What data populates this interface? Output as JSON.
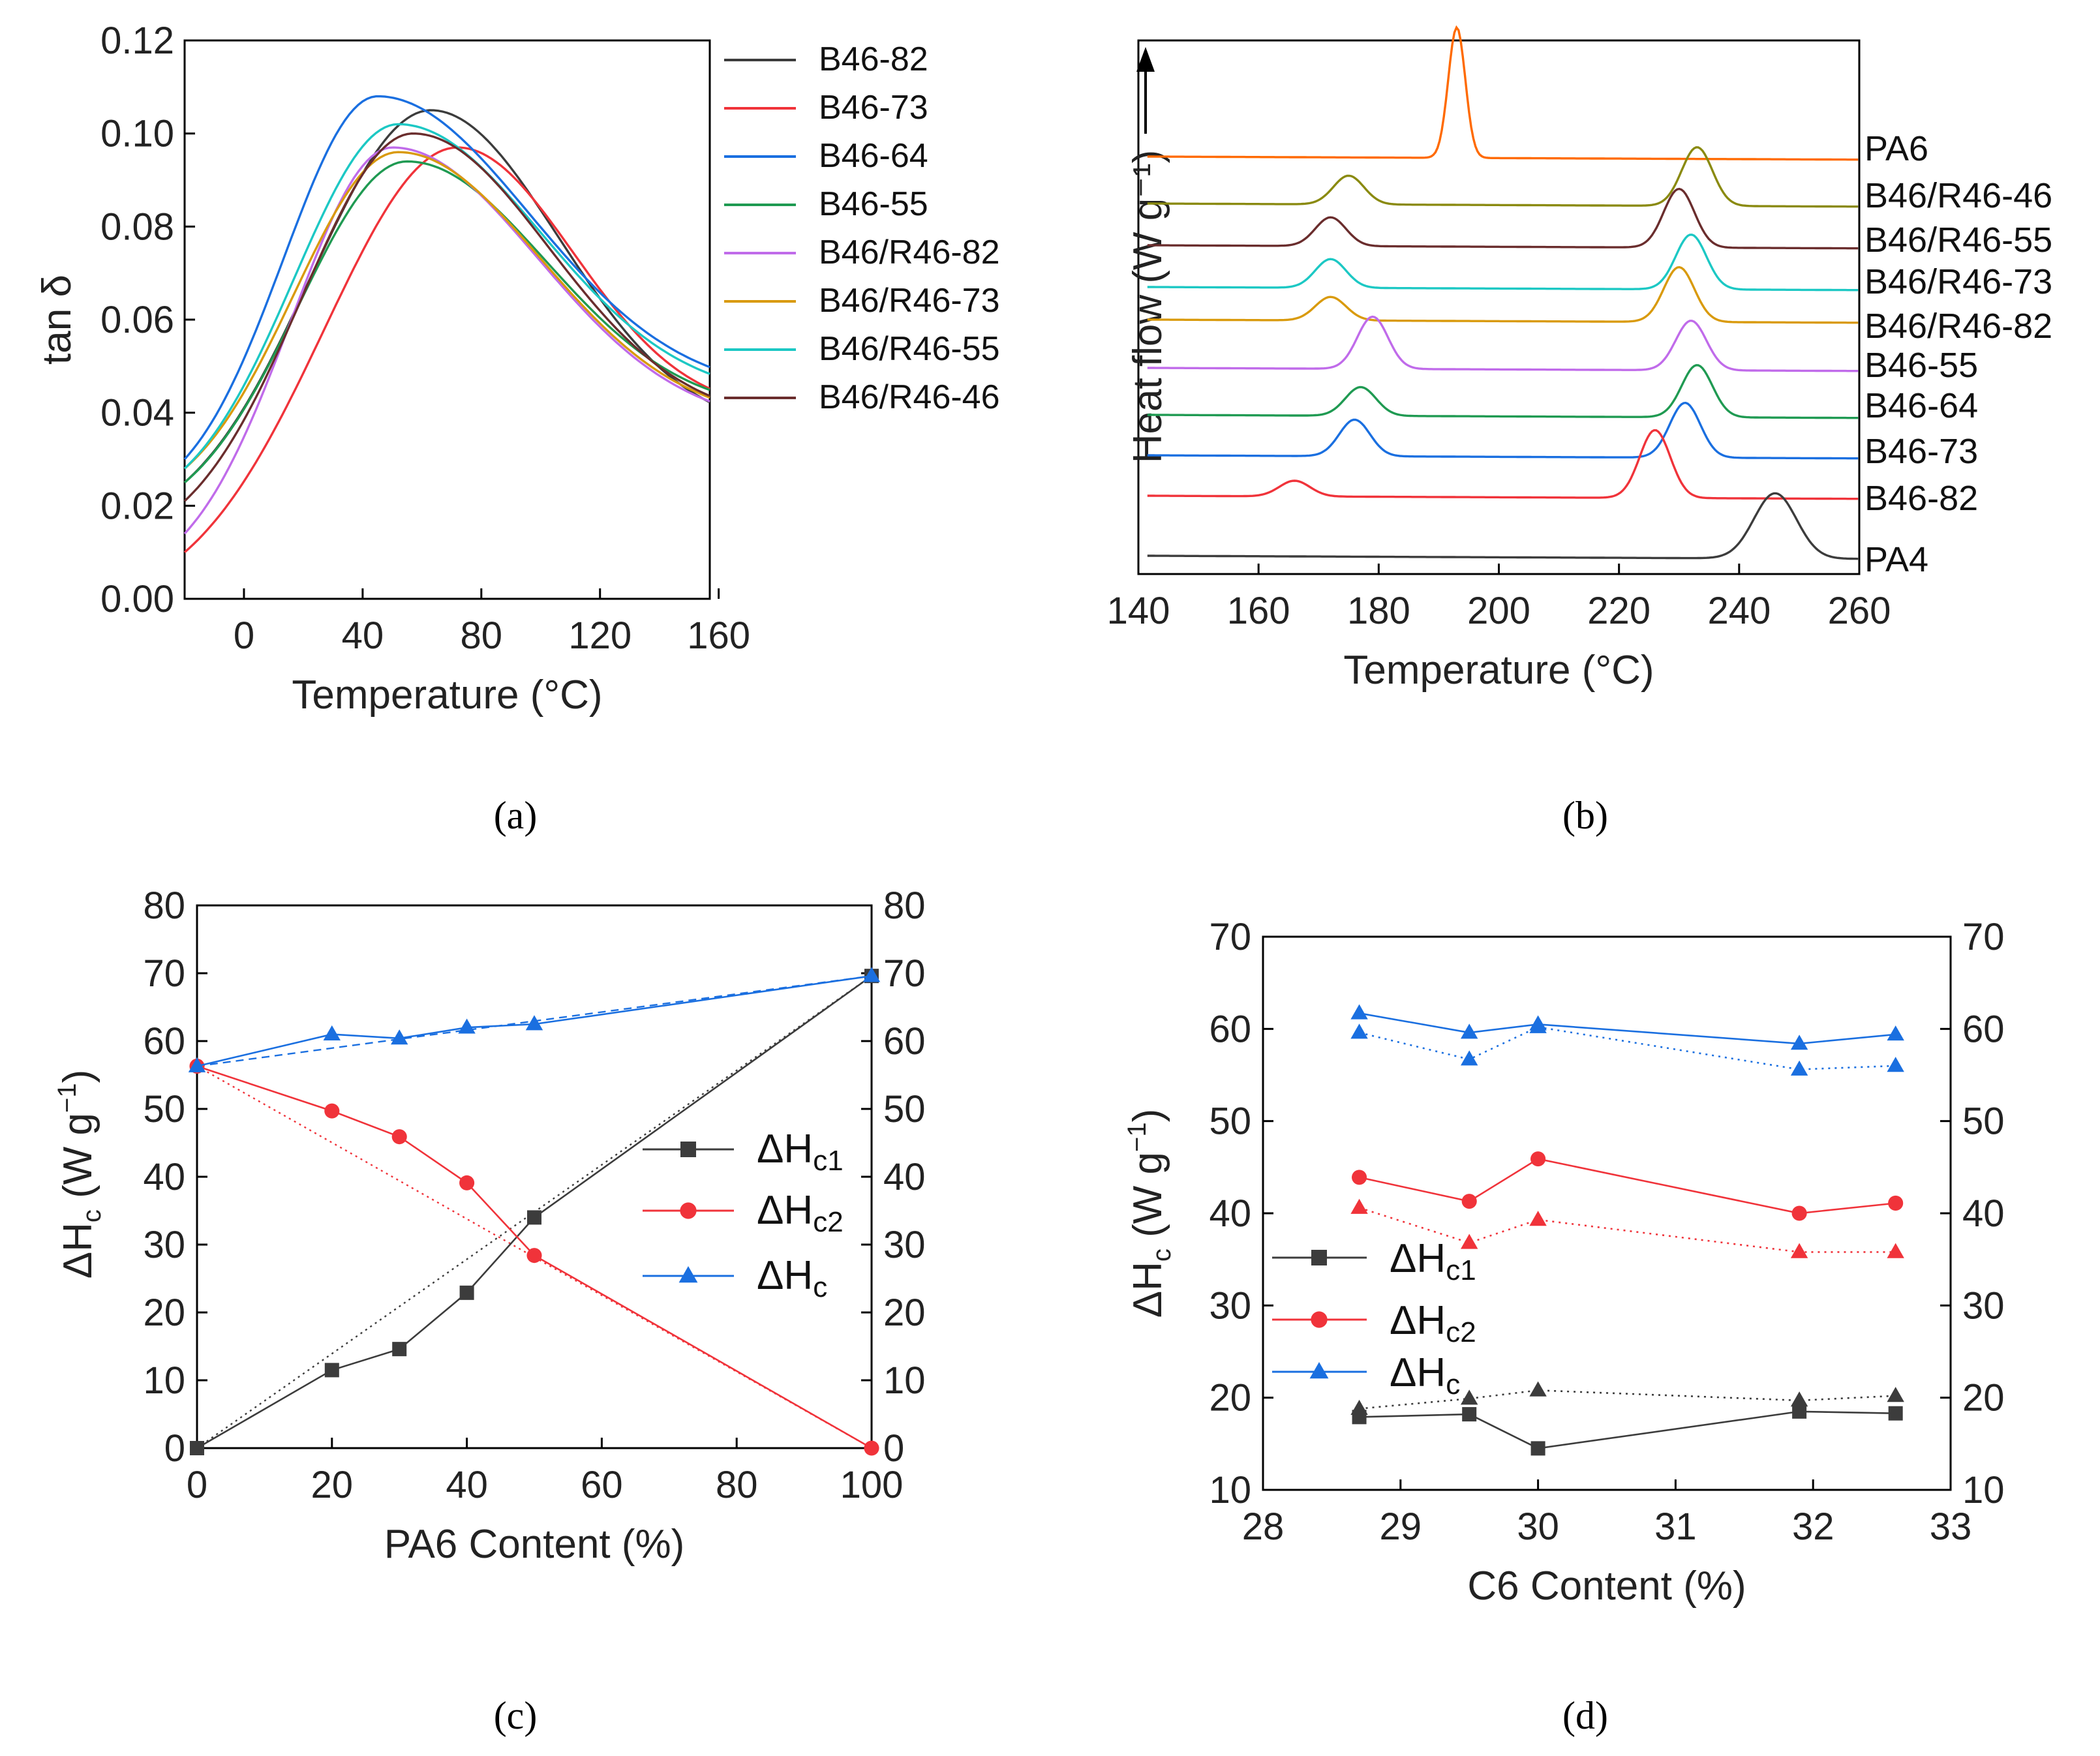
{
  "panels": {
    "a": {
      "label": "(a)"
    },
    "b": {
      "label": "(b)"
    },
    "c": {
      "label": "(c)"
    },
    "d": {
      "label": "(d)"
    }
  },
  "colors": {
    "black": "#3c3c3c",
    "red": "#f0333a",
    "blue": "#1a6fe0",
    "green": "#1f9a52",
    "violet": "#c06bea",
    "gold": "#d99a0c",
    "cyan": "#1cc8c4",
    "brown": "#6a2d2d",
    "orange": "#ff6a00",
    "olive": "#8a8a10"
  },
  "chart_data": [
    {
      "id": "a",
      "type": "line",
      "xlabel": "Temperature (°C)",
      "ylabel": "tan δ",
      "xlim": [
        -20,
        157
      ],
      "ylim": [
        0,
        0.12
      ],
      "xticks": [
        0,
        40,
        80,
        120,
        160
      ],
      "yticks": [
        "0.00",
        "0.02",
        "0.04",
        "0.06",
        "0.08",
        "0.10",
        "0.12"
      ],
      "legend": "top-right",
      "series": [
        {
          "name": "B46-82",
          "color": "#3c3c3c",
          "peak_x": 63,
          "peak_y": 0.105,
          "y_start": 0.025,
          "y_end": 0.036
        },
        {
          "name": "B46-73",
          "color": "#f0333a",
          "peak_x": 72,
          "peak_y": 0.097,
          "y_start": 0.01,
          "y_end": 0.04
        },
        {
          "name": "B46-64",
          "color": "#1a6fe0",
          "peak_x": 45,
          "peak_y": 0.108,
          "y_start": 0.03,
          "y_end": 0.044
        },
        {
          "name": "B46-55",
          "color": "#1f9a52",
          "peak_x": 55,
          "peak_y": 0.094,
          "y_start": 0.025,
          "y_end": 0.04
        },
        {
          "name": "B46/R46-82",
          "color": "#c06bea",
          "peak_x": 50,
          "peak_y": 0.097,
          "y_start": 0.014,
          "y_end": 0.037
        },
        {
          "name": "B46/R46-73",
          "color": "#d99a0c",
          "peak_x": 52,
          "peak_y": 0.096,
          "y_start": 0.028,
          "y_end": 0.038
        },
        {
          "name": "B46/R46-55",
          "color": "#1cc8c4",
          "peak_x": 52,
          "peak_y": 0.102,
          "y_start": 0.028,
          "y_end": 0.043
        },
        {
          "name": "B46/R46-46",
          "color": "#6a2d2d",
          "peak_x": 57,
          "peak_y": 0.1,
          "y_start": 0.021,
          "y_end": 0.038
        }
      ]
    },
    {
      "id": "b",
      "type": "line",
      "xlabel": "Temperature (°C)",
      "ylabel": "Heat flow (W g⁻¹)",
      "xlim": [
        140,
        260
      ],
      "xticks": [
        140,
        160,
        180,
        200,
        220,
        240,
        260
      ],
      "series": [
        {
          "name": "PA6",
          "color": "#ff6a00",
          "peaks": [
            [
              193,
              1.0
            ]
          ]
        },
        {
          "name": "B46/R46-46",
          "color": "#8a8a10",
          "peaks": [
            [
              175,
              0.22
            ],
            [
              233,
              0.45
            ]
          ]
        },
        {
          "name": "B46/R46-55",
          "color": "#6a2d2d",
          "peaks": [
            [
              172,
              0.22
            ],
            [
              230,
              0.45
            ]
          ]
        },
        {
          "name": "B46/R46-73",
          "color": "#1cc8c4",
          "peaks": [
            [
              172,
              0.22
            ],
            [
              232,
              0.42
            ]
          ]
        },
        {
          "name": "B46/R46-82",
          "color": "#d99a0c",
          "peaks": [
            [
              172,
              0.18
            ],
            [
              230,
              0.42
            ]
          ]
        },
        {
          "name": "B46-55",
          "color": "#c06bea",
          "peaks": [
            [
              179,
              0.4
            ],
            [
              232,
              0.38
            ]
          ]
        },
        {
          "name": "B46-64",
          "color": "#1f9a52",
          "peaks": [
            [
              177,
              0.22
            ],
            [
              233,
              0.4
            ]
          ]
        },
        {
          "name": "B46-73",
          "color": "#1a6fe0",
          "peaks": [
            [
              176,
              0.28
            ],
            [
              231,
              0.42
            ]
          ]
        },
        {
          "name": "B46-82",
          "color": "#f0333a",
          "peaks": [
            [
              166,
              0.12
            ],
            [
              226,
              0.52
            ]
          ]
        },
        {
          "name": "PA4",
          "color": "#3c3c3c",
          "peaks": [
            [
              246,
              0.5
            ]
          ]
        }
      ]
    },
    {
      "id": "c",
      "type": "line",
      "xlabel": "PA6 Content (%)",
      "xlim": [
        0,
        100
      ],
      "ylim": [
        0,
        80
      ],
      "xticks": [
        0,
        20,
        40,
        60,
        80,
        100
      ],
      "yticks": [
        0,
        10,
        20,
        30,
        40,
        50,
        60,
        70,
        80
      ],
      "legend": "center-right",
      "x": [
        0,
        20,
        30,
        40,
        50,
        100
      ],
      "series": [
        {
          "name": "ΔHc1",
          "color": "#3c3c3c",
          "marker": "square",
          "values": [
            0,
            11.5,
            14.6,
            22.9,
            34.0,
            69.6
          ]
        },
        {
          "name": "ΔHc2",
          "color": "#f0333a",
          "marker": "circle",
          "values": [
            56.3,
            49.7,
            45.9,
            39.1,
            28.4,
            0
          ]
        },
        {
          "name": "ΔHc",
          "color": "#1a6fe0",
          "marker": "triangle",
          "values": [
            56.3,
            61.0,
            60.4,
            62.0,
            62.5,
            69.6
          ]
        }
      ]
    },
    {
      "id": "d",
      "type": "line",
      "xlabel": "C6 Content (%)",
      "xlim": [
        28,
        33
      ],
      "ylim": [
        10,
        70
      ],
      "xticks": [
        28,
        29,
        30,
        31,
        32,
        33
      ],
      "yticks": [
        10,
        20,
        30,
        40,
        50,
        60,
        70
      ],
      "legend": "bottom-left",
      "x": [
        28.7,
        29.5,
        30.0,
        31.9,
        32.6
      ],
      "series": [
        {
          "name": "ΔHc1",
          "color": "#3c3c3c",
          "marker": "square",
          "values": [
            17.9,
            18.2,
            14.5,
            18.5,
            18.3
          ]
        },
        {
          "name": "ΔHc2",
          "color": "#f0333a",
          "marker": "circle",
          "values": [
            43.9,
            41.3,
            45.9,
            40.0,
            41.1
          ]
        },
        {
          "name": "ΔHc",
          "color": "#1a6fe0",
          "marker": "triangle",
          "values": [
            61.7,
            59.6,
            60.5,
            58.4,
            59.4
          ]
        },
        {
          "color": "#3c3c3c",
          "marker": "triangle",
          "style": "dotted",
          "values": [
            18.8,
            19.9,
            20.8,
            19.7,
            20.2
          ]
        },
        {
          "color": "#f0333a",
          "marker": "triangle",
          "style": "dotted",
          "values": [
            40.6,
            36.8,
            39.3,
            35.8,
            35.8
          ]
        },
        {
          "color": "#1a6fe0",
          "marker": "triangle",
          "style": "dotted",
          "values": [
            59.6,
            56.7,
            60.2,
            55.6,
            56.0
          ]
        }
      ]
    }
  ]
}
